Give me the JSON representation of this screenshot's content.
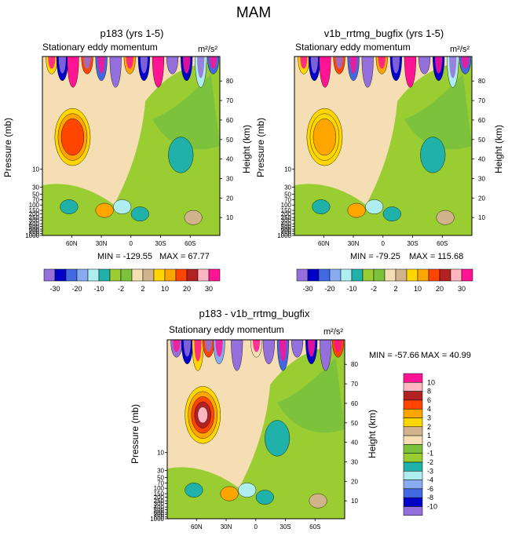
{
  "page_title": "MAM",
  "colors": {
    "scale": [
      "#9370db",
      "#0000c8",
      "#4169e1",
      "#87aaf0",
      "#afeeee",
      "#20b2aa",
      "#9acd32",
      "#7cc23c",
      "#f5deb3",
      "#d2b48c",
      "#ffd700",
      "#ffa500",
      "#ff4500",
      "#b22222",
      "#ffb6c1",
      "#ff1493"
    ],
    "diff_scale": [
      "#9370db",
      "#0000c8",
      "#4169e1",
      "#87aaf0",
      "#afeeee",
      "#20b2aa",
      "#9acd32",
      "#7cc23c",
      "#f5deb3",
      "#d2b48c",
      "#ffd700",
      "#ffa500",
      "#ff4500",
      "#b22222",
      "#ffb6c1",
      "#ff1493"
    ]
  },
  "chart_data": [
    {
      "type": "heatmap",
      "title": "p183 (yrs 1-5)",
      "subtitle": "Stationary eddy momentum",
      "units": "m²/s²",
      "ylabel": "Pressure (mb)",
      "y2label": "Height (km)",
      "x_ticks": [
        "60N",
        "30N",
        "0",
        "30S",
        "60S"
      ],
      "pressure_ticks": [
        "10",
        "30",
        "50",
        "70",
        "100",
        "150",
        "200",
        "250",
        "300",
        "400",
        "500",
        "600",
        "700",
        "850",
        "1000"
      ],
      "height_ticks": [
        "10",
        "20",
        "30",
        "40",
        "50",
        "60",
        "70",
        "80"
      ],
      "min_label": "MIN = -129.55",
      "max_label": "MAX =  67.77",
      "min": -129.55,
      "max": 67.77
    },
    {
      "type": "heatmap",
      "title": "v1b_rrtmg_bugfix (yrs 1-5)",
      "subtitle": "Stationary eddy momentum",
      "units": "m²/s²",
      "ylabel": "Pressure (mb)",
      "y2label": "Height (km)",
      "x_ticks": [
        "60N",
        "30N",
        "0",
        "30S",
        "60S"
      ],
      "pressure_ticks": [
        "10",
        "30",
        "50",
        "70",
        "100",
        "150",
        "200",
        "250",
        "300",
        "400",
        "500",
        "600",
        "700",
        "850",
        "1000"
      ],
      "height_ticks": [
        "10",
        "20",
        "30",
        "40",
        "50",
        "60",
        "70",
        "80"
      ],
      "min_label": "MIN = -79.25",
      "max_label": "MAX = 115.68",
      "min": -79.25,
      "max": 115.68
    },
    {
      "type": "heatmap",
      "title": "p183 - v1b_rrtmg_bugfix",
      "subtitle": "Stationary eddy momentum",
      "units": "m²/s²",
      "ylabel": "Pressure (mb)",
      "y2label": "Height (km)",
      "x_ticks": [
        "60N",
        "30N",
        "0",
        "30S",
        "60S"
      ],
      "pressure_ticks": [
        "10",
        "30",
        "50",
        "70",
        "100",
        "150",
        "200",
        "250",
        "300",
        "400",
        "500",
        "600",
        "700",
        "850",
        "1000"
      ],
      "height_ticks": [
        "10",
        "20",
        "30",
        "40",
        "50",
        "60",
        "70",
        "80"
      ],
      "min_label": "MIN = -57.66",
      "max_label": "MAX =  40.99",
      "min": -57.66,
      "max": 40.99
    }
  ],
  "colorbar_top": {
    "labels": [
      "-30",
      "-20",
      "-10",
      "-2",
      "2",
      "10",
      "20",
      "30"
    ]
  },
  "colorbar_diff": {
    "labels": [
      "10",
      "8",
      "6",
      "4",
      "3",
      "2",
      "1",
      "0",
      "-1",
      "-2",
      "-3",
      "-4",
      "-6",
      "-8",
      "-10"
    ]
  }
}
